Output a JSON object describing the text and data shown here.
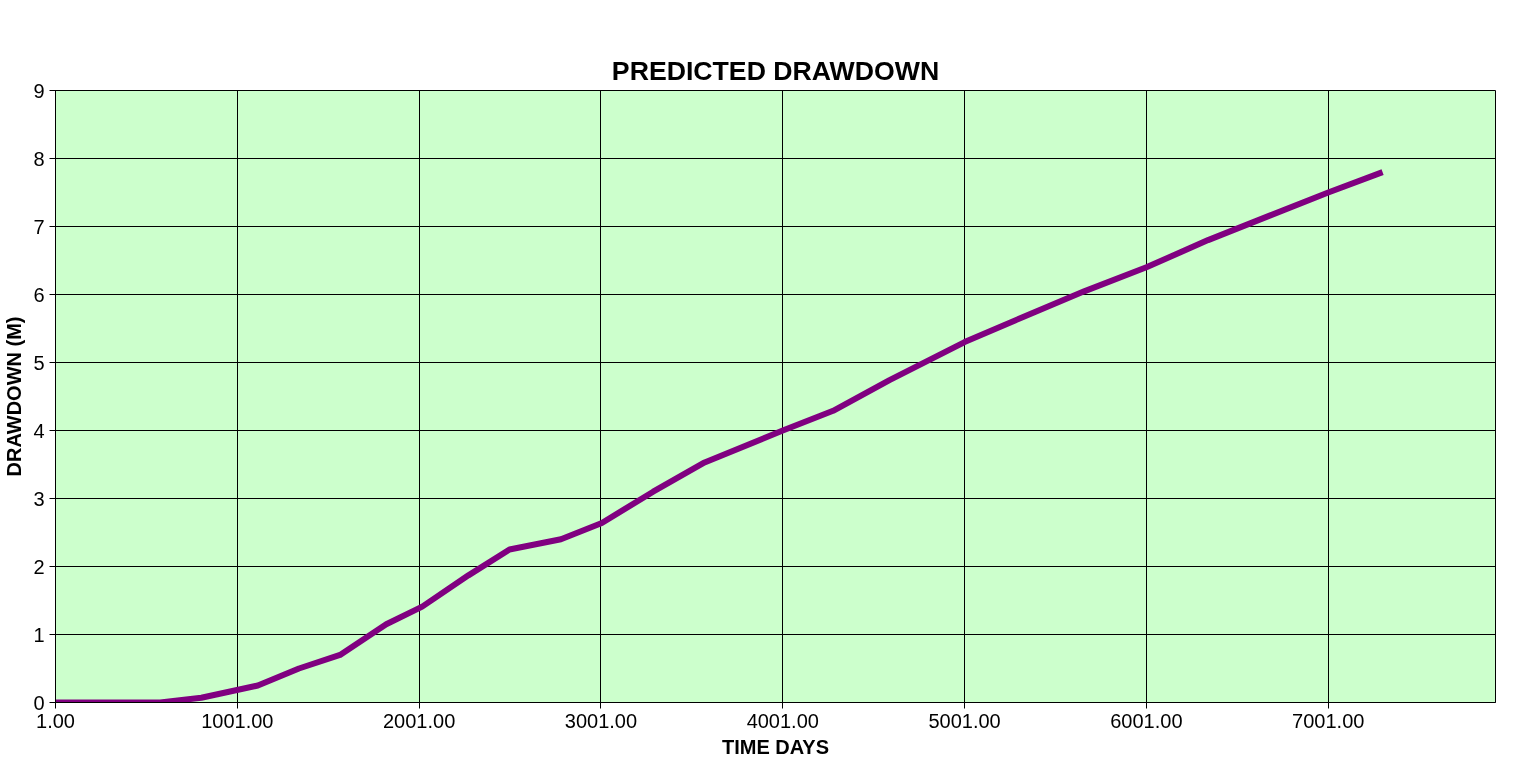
{
  "chart_data": {
    "type": "line",
    "title": "PREDICTED DRAWDOWN",
    "xlabel": "TIME DAYS",
    "ylabel": "DRAWDOWN (M)",
    "x": [
      1,
      577,
      803,
      1114,
      1340,
      1566,
      1820,
      2018,
      2272,
      2498,
      2781,
      3006,
      3288,
      3571,
      4001,
      4278,
      4588,
      5001,
      5323,
      5662,
      6001,
      6340,
      6679,
      7001,
      7300
    ],
    "series": [
      {
        "color": "#800080",
        "values": [
          0,
          0,
          0.07,
          0.25,
          0.5,
          0.7,
          1.15,
          1.41,
          1.87,
          2.25,
          2.4,
          2.64,
          3.1,
          3.53,
          4.0,
          4.29,
          4.74,
          5.3,
          5.67,
          6.05,
          6.4,
          6.8,
          7.16,
          7.5,
          7.8
        ]
      }
    ],
    "xlim": [
      1,
      7921
    ],
    "ylim": [
      0,
      9
    ],
    "xticks": [
      {
        "value": 1,
        "label": "1.00"
      },
      {
        "value": 1001,
        "label": "1001.00"
      },
      {
        "value": 2001,
        "label": "2001.00"
      },
      {
        "value": 3001,
        "label": "3001.00"
      },
      {
        "value": 4001,
        "label": "4001.00"
      },
      {
        "value": 5001,
        "label": "5001.00"
      },
      {
        "value": 6001,
        "label": "6001.00"
      },
      {
        "value": 7001,
        "label": "7001.00"
      }
    ],
    "yticks": [
      0,
      1,
      2,
      3,
      4,
      5,
      6,
      7,
      8,
      9
    ],
    "grid": true,
    "marker": "none",
    "line_style": "solid"
  }
}
